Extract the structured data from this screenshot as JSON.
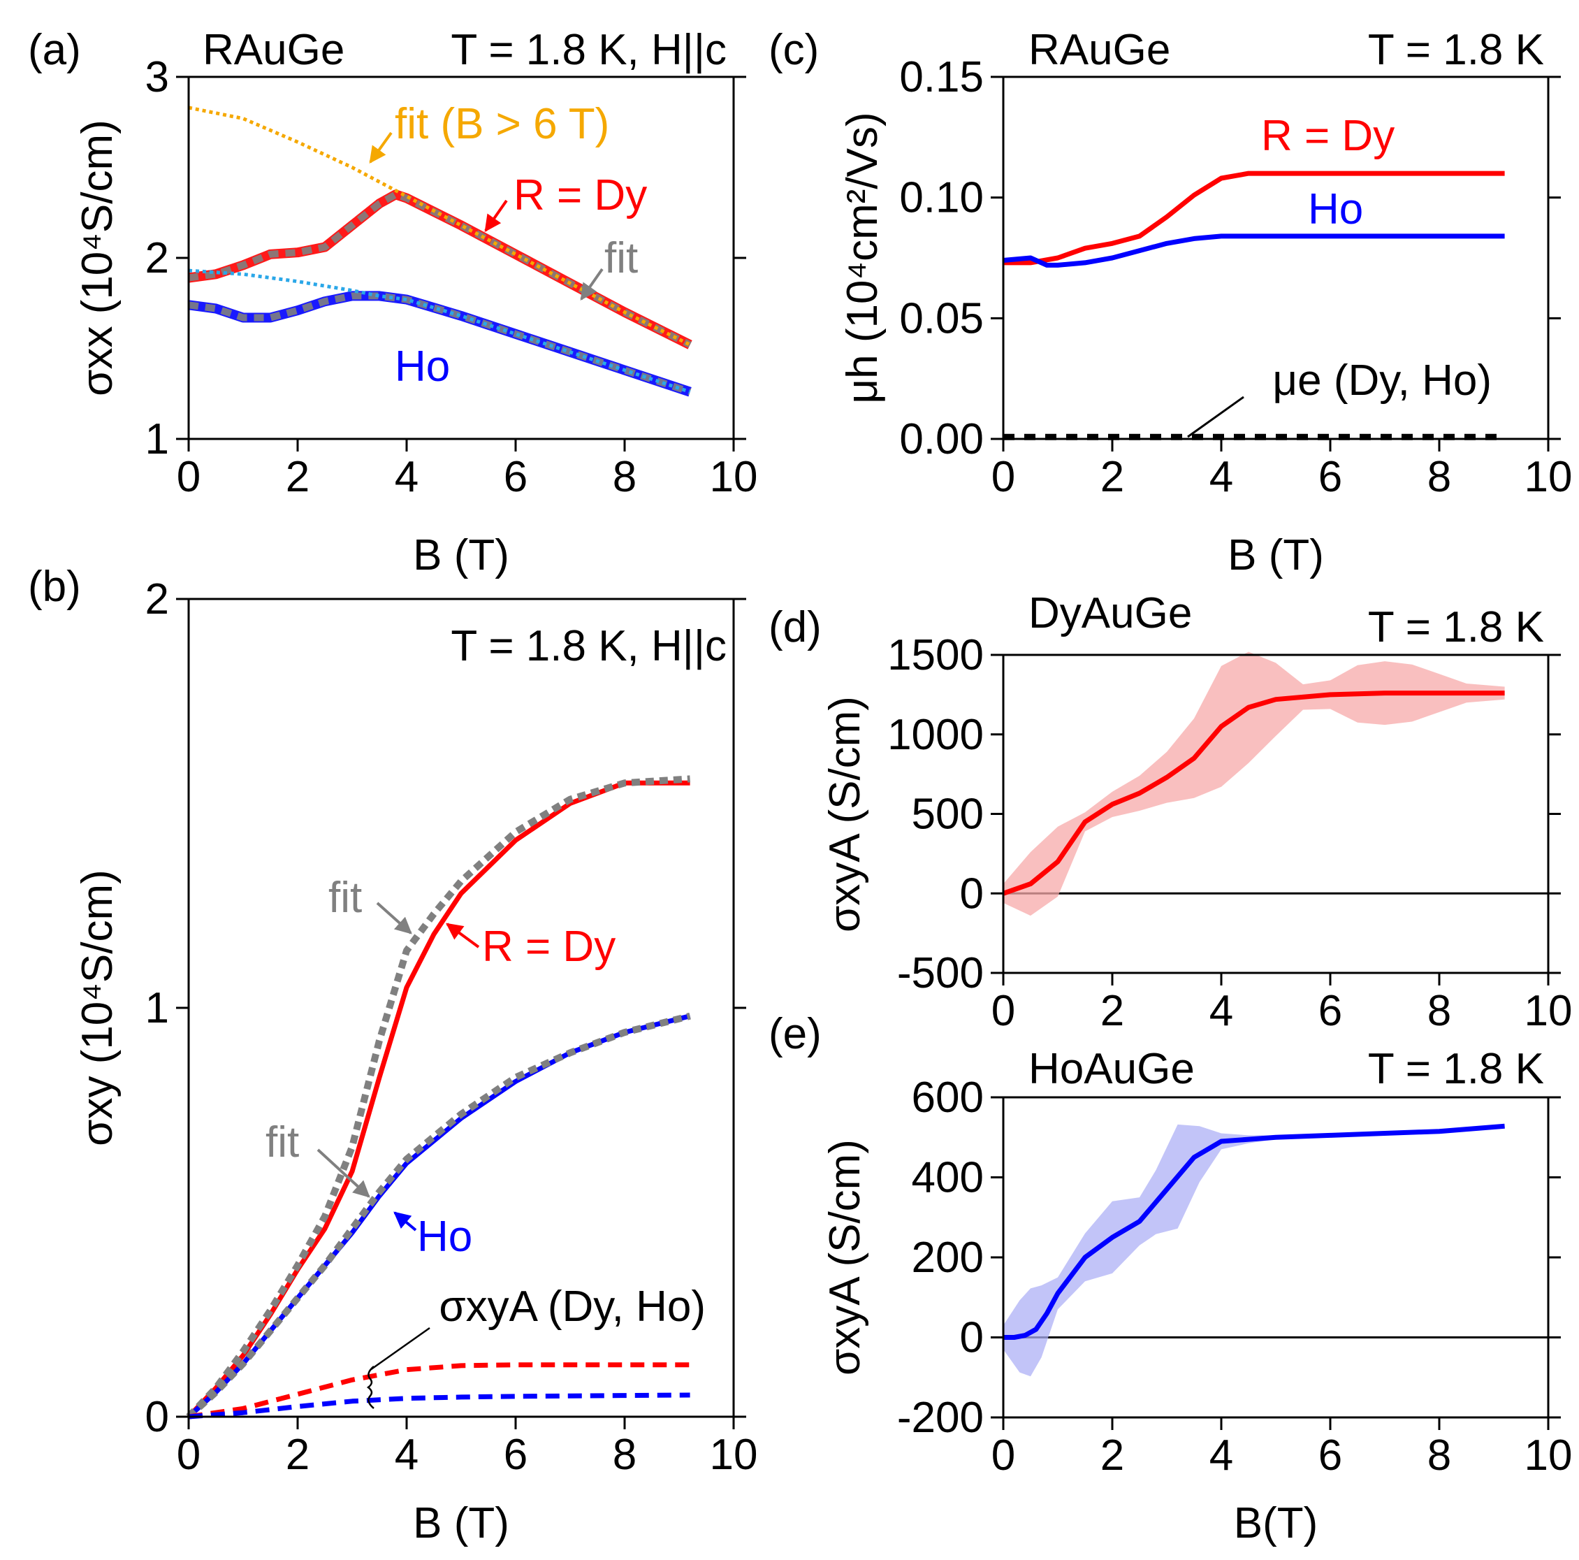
{
  "colors": {
    "dy": "#ff0000",
    "ho": "#0000ff",
    "fit": "#808080",
    "fit_orange": "#f5a800",
    "fit_cyan": "#2aa7e8",
    "black": "#000000"
  },
  "chart_data": [
    {
      "id": "a",
      "panel_label": "(a)",
      "type": "line",
      "title_left": "RAuGe",
      "title_right": "T = 1.8 K, H||c",
      "xlabel": "B (T)",
      "ylabel": "σxx (10⁴S/cm)",
      "xlim": [
        0,
        10
      ],
      "ylim": [
        1,
        3
      ],
      "xticks": [
        "0",
        "2",
        "4",
        "6",
        "8",
        "10"
      ],
      "yticks": [
        "1",
        "2",
        "3"
      ],
      "annotations": [
        "fit (B > 6 T)",
        "R = Dy",
        "fit",
        "Ho"
      ],
      "series": [
        {
          "name": "Dy",
          "x": [
            0,
            0.5,
            1,
            1.5,
            2,
            2.5,
            3,
            3.5,
            3.8,
            4,
            5,
            6,
            7,
            8,
            9.2
          ],
          "y": [
            1.89,
            1.91,
            1.96,
            2.02,
            2.03,
            2.06,
            2.18,
            2.3,
            2.35,
            2.33,
            2.18,
            2.02,
            1.86,
            1.7,
            1.52
          ]
        },
        {
          "name": "Ho",
          "x": [
            0,
            0.5,
            1,
            1.5,
            2,
            2.5,
            3,
            3.5,
            4,
            5,
            6,
            7,
            8,
            9.2
          ],
          "y": [
            1.74,
            1.72,
            1.67,
            1.67,
            1.71,
            1.76,
            1.79,
            1.79,
            1.77,
            1.68,
            1.58,
            1.48,
            1.38,
            1.26
          ]
        },
        {
          "name": "fit (B > 6 T) Dy",
          "x": [
            0,
            1,
            2,
            3,
            4,
            5,
            6,
            7,
            8,
            9.2
          ],
          "y": [
            2.83,
            2.77,
            2.64,
            2.5,
            2.34,
            2.18,
            2.02,
            1.86,
            1.7,
            1.52
          ]
        },
        {
          "name": "fit (B > 6 T) Ho",
          "x": [
            0,
            1,
            2,
            3,
            3.5,
            4,
            5,
            6,
            7,
            8,
            9.2
          ],
          "y": [
            1.93,
            1.91,
            1.87,
            1.82,
            1.79,
            1.77,
            1.68,
            1.58,
            1.48,
            1.38,
            1.26
          ]
        }
      ]
    },
    {
      "id": "b",
      "panel_label": "(b)",
      "type": "line",
      "title_right": "T = 1.8 K, H||c",
      "xlabel": "B (T)",
      "ylabel": "σxy (10⁴S/cm)",
      "xlim": [
        0,
        10
      ],
      "ylim": [
        0,
        2
      ],
      "xticks": [
        "0",
        "2",
        "4",
        "6",
        "8",
        "10"
      ],
      "yticks": [
        "0",
        "1",
        "2"
      ],
      "annotations": [
        "fit",
        "R = Dy",
        "fit",
        "Ho",
        "σxyA (Dy, Ho)"
      ],
      "series": [
        {
          "name": "Dy",
          "x": [
            0,
            0.5,
            1,
            1.5,
            2,
            2.5,
            3,
            3.5,
            4,
            4.5,
            5,
            6,
            7,
            8,
            9.2
          ],
          "y": [
            0,
            0.07,
            0.15,
            0.25,
            0.36,
            0.46,
            0.6,
            0.83,
            1.05,
            1.18,
            1.28,
            1.41,
            1.5,
            1.55,
            1.55
          ]
        },
        {
          "name": "Ho",
          "x": [
            0,
            0.5,
            1,
            1.5,
            2,
            2.5,
            3,
            3.5,
            4,
            5,
            6,
            7,
            8,
            9.2
          ],
          "y": [
            0,
            0.06,
            0.13,
            0.21,
            0.29,
            0.37,
            0.45,
            0.54,
            0.62,
            0.73,
            0.82,
            0.89,
            0.94,
            0.98
          ]
        },
        {
          "name": "fit Dy",
          "x": [
            0,
            0.5,
            1,
            1.5,
            2,
            2.5,
            3,
            3.5,
            4,
            4.5,
            5,
            6,
            7,
            8,
            9.2
          ],
          "y": [
            0,
            0.07,
            0.16,
            0.26,
            0.37,
            0.49,
            0.66,
            0.92,
            1.14,
            1.23,
            1.31,
            1.43,
            1.51,
            1.55,
            1.56
          ]
        },
        {
          "name": "fit Ho",
          "x": [
            0,
            0.5,
            1,
            1.5,
            2,
            2.5,
            3,
            3.5,
            4,
            5,
            6,
            7,
            8,
            9.2
          ],
          "y": [
            0,
            0.06,
            0.13,
            0.21,
            0.29,
            0.37,
            0.46,
            0.55,
            0.63,
            0.74,
            0.83,
            0.89,
            0.94,
            0.98
          ]
        },
        {
          "name": "σxyA Dy",
          "x": [
            0,
            1,
            2,
            3,
            4,
            5,
            6,
            7,
            8,
            9.2
          ],
          "y": [
            0,
            0.02,
            0.055,
            0.09,
            0.115,
            0.125,
            0.127,
            0.127,
            0.127,
            0.127
          ]
        },
        {
          "name": "σxyA Ho",
          "x": [
            0,
            1,
            2,
            3,
            4,
            5,
            6,
            7,
            8,
            9.2
          ],
          "y": [
            0,
            0.01,
            0.025,
            0.038,
            0.045,
            0.048,
            0.05,
            0.051,
            0.052,
            0.053
          ]
        }
      ]
    },
    {
      "id": "c",
      "panel_label": "(c)",
      "type": "line",
      "title_left": "RAuGe",
      "title_right": "T = 1.8 K",
      "xlabel": "B (T)",
      "ylabel": "μh (10⁴cm²/Vs)",
      "xlim": [
        0,
        10
      ],
      "ylim": [
        0,
        0.15
      ],
      "xticks": [
        "0",
        "2",
        "4",
        "6",
        "8",
        "10"
      ],
      "yticks": [
        "0.00",
        "0.05",
        "0.10",
        "0.15"
      ],
      "annotations": [
        "R = Dy",
        "Ho",
        "μe (Dy, Ho)"
      ],
      "series": [
        {
          "name": "Dy",
          "x": [
            0,
            0.5,
            1,
            1.5,
            2,
            2.5,
            3,
            3.5,
            4,
            4.5,
            5,
            6,
            7,
            8,
            9.2
          ],
          "y": [
            0.073,
            0.073,
            0.075,
            0.079,
            0.081,
            0.084,
            0.092,
            0.101,
            0.108,
            0.11,
            0.11,
            0.11,
            0.11,
            0.11,
            0.11
          ]
        },
        {
          "name": "Ho",
          "x": [
            0,
            0.5,
            0.8,
            1,
            1.5,
            2,
            2.5,
            3,
            3.5,
            4,
            5,
            6,
            7,
            8,
            9.2
          ],
          "y": [
            0.074,
            0.075,
            0.072,
            0.072,
            0.073,
            0.075,
            0.078,
            0.081,
            0.083,
            0.084,
            0.084,
            0.084,
            0.084,
            0.084,
            0.084
          ]
        },
        {
          "name": "μe (Dy, Ho)",
          "x": [
            0,
            9.2
          ],
          "y": [
            0.0008,
            0.0008
          ]
        }
      ]
    },
    {
      "id": "d",
      "panel_label": "(d)",
      "type": "line",
      "title_left": "DyAuGe",
      "title_right": "T = 1.8 K",
      "xlabel": "",
      "ylabel": "σxyA (S/cm)",
      "xlim": [
        0,
        10
      ],
      "ylim": [
        -500,
        1500
      ],
      "xticks": [
        "0",
        "2",
        "4",
        "6",
        "8",
        "10"
      ],
      "yticks": [
        "-500",
        "0",
        "500",
        "1000",
        "1500"
      ],
      "series": [
        {
          "name": "DyAuGe",
          "x": [
            0,
            0.5,
            1,
            1.5,
            2,
            2.5,
            3,
            3.5,
            4,
            4.5,
            5,
            6,
            7,
            8,
            9.2
          ],
          "y": [
            0,
            60,
            200,
            450,
            560,
            630,
            730,
            850,
            1050,
            1170,
            1220,
            1250,
            1260,
            1260,
            1260
          ]
        }
      ],
      "error_band": {
        "x": [
          0,
          0.5,
          1,
          1.5,
          2,
          2.5,
          3,
          3.5,
          4,
          4.5,
          5,
          5.5,
          6,
          6.5,
          7,
          7.5,
          8,
          8.5,
          9.2
        ],
        "half_width": [
          60,
          200,
          220,
          60,
          80,
          110,
          160,
          250,
          380,
          350,
          230,
          80,
          90,
          180,
          200,
          180,
          120,
          60,
          40
        ]
      }
    },
    {
      "id": "e",
      "panel_label": "(e)",
      "type": "line",
      "title_left": "HoAuGe",
      "title_right": "T = 1.8 K",
      "xlabel": "B(T)",
      "ylabel": "σxyA (S/cm)",
      "xlim": [
        0,
        10
      ],
      "ylim": [
        -200,
        600
      ],
      "xticks": [
        "0",
        "2",
        "4",
        "6",
        "8",
        "10"
      ],
      "yticks": [
        "-200",
        "0",
        "200",
        "400",
        "600"
      ],
      "series": [
        {
          "name": "HoAuGe",
          "x": [
            0,
            0.2,
            0.4,
            0.6,
            0.8,
            1,
            1.5,
            2,
            2.5,
            3,
            3.5,
            4,
            5,
            6,
            7,
            8,
            9.2
          ],
          "y": [
            0,
            0,
            5,
            20,
            60,
            110,
            200,
            250,
            290,
            370,
            450,
            490,
            500,
            505,
            510,
            515,
            528
          ]
        }
      ],
      "error_band": {
        "x": [
          0,
          0.3,
          0.5,
          0.7,
          1,
          1.5,
          2,
          2.5,
          2.8,
          3.2,
          3.6,
          4,
          4.5,
          5
        ],
        "half_width": [
          30,
          90,
          110,
          90,
          40,
          60,
          90,
          60,
          80,
          130,
          70,
          20,
          10,
          5
        ]
      }
    }
  ]
}
